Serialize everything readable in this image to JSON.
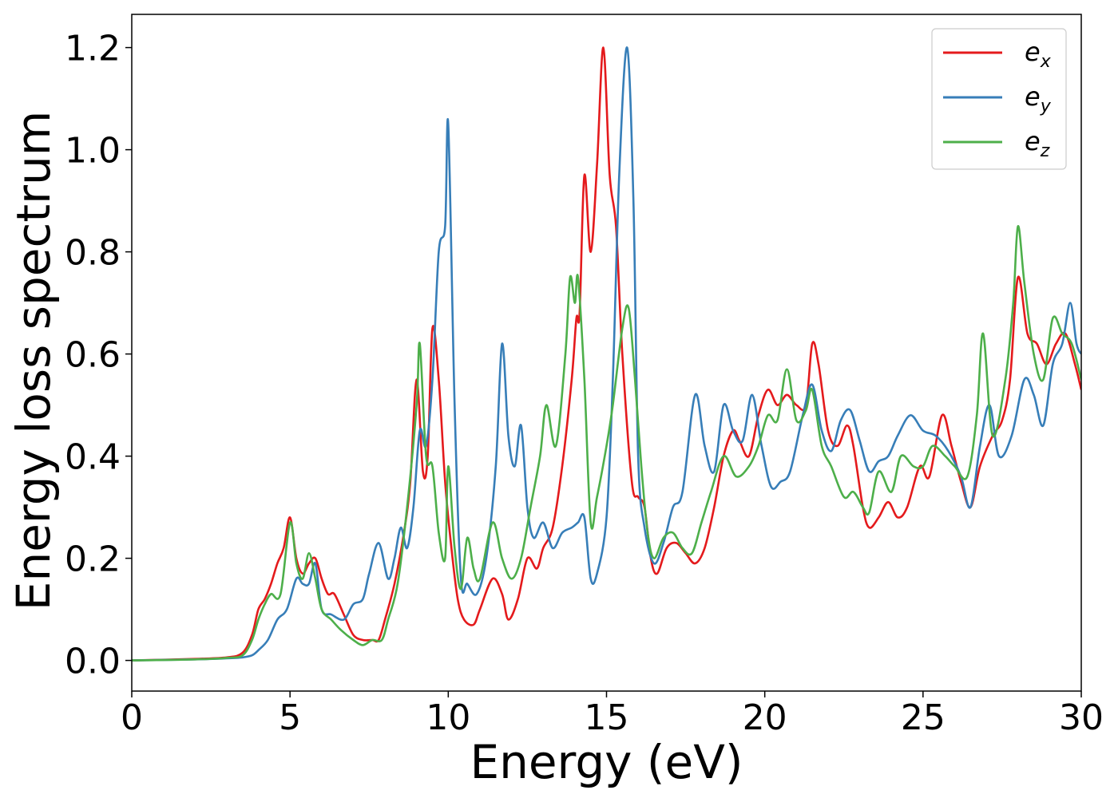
{
  "chart_data": {
    "type": "line",
    "xlabel": "Energy (eV)",
    "ylabel": "Energy loss spectrum",
    "xlim": [
      0,
      30
    ],
    "ylim": [
      -0.06,
      1.265
    ],
    "xticks": [
      0,
      5,
      10,
      15,
      20,
      25,
      30
    ],
    "xtick_labels": [
      "0",
      "5",
      "10",
      "15",
      "20",
      "25",
      "30"
    ],
    "yticks": [
      0.0,
      0.2,
      0.4,
      0.6,
      0.8,
      1.0,
      1.2
    ],
    "ytick_labels": [
      "0.0",
      "0.2",
      "0.4",
      "0.6",
      "0.8",
      "1.0",
      "1.2"
    ],
    "grid": false,
    "legend_position": "top-right",
    "series": [
      {
        "name": "e_x",
        "legend_base": "e",
        "legend_sub": "x",
        "color": "#e41a1c",
        "points": [
          [
            0,
            0
          ],
          [
            2,
            0.003
          ],
          [
            3,
            0.006
          ],
          [
            3.5,
            0.015
          ],
          [
            3.8,
            0.05
          ],
          [
            4.0,
            0.1
          ],
          [
            4.2,
            0.12
          ],
          [
            4.4,
            0.15
          ],
          [
            4.6,
            0.19
          ],
          [
            4.8,
            0.22
          ],
          [
            5.0,
            0.28
          ],
          [
            5.2,
            0.2
          ],
          [
            5.4,
            0.17
          ],
          [
            5.6,
            0.19
          ],
          [
            5.8,
            0.2
          ],
          [
            6.0,
            0.16
          ],
          [
            6.2,
            0.13
          ],
          [
            6.4,
            0.13
          ],
          [
            6.7,
            0.09
          ],
          [
            7.0,
            0.05
          ],
          [
            7.3,
            0.04
          ],
          [
            7.6,
            0.04
          ],
          [
            7.8,
            0.04
          ],
          [
            8.0,
            0.08
          ],
          [
            8.3,
            0.15
          ],
          [
            8.6,
            0.25
          ],
          [
            8.8,
            0.35
          ],
          [
            9.0,
            0.55
          ],
          [
            9.2,
            0.37
          ],
          [
            9.35,
            0.4
          ],
          [
            9.5,
            0.65
          ],
          [
            9.7,
            0.55
          ],
          [
            9.9,
            0.35
          ],
          [
            10.1,
            0.22
          ],
          [
            10.3,
            0.12
          ],
          [
            10.5,
            0.08
          ],
          [
            10.8,
            0.07
          ],
          [
            11.0,
            0.1
          ],
          [
            11.4,
            0.16
          ],
          [
            11.7,
            0.13
          ],
          [
            11.9,
            0.08
          ],
          [
            12.2,
            0.12
          ],
          [
            12.5,
            0.2
          ],
          [
            12.8,
            0.18
          ],
          [
            13.0,
            0.22
          ],
          [
            13.3,
            0.26
          ],
          [
            13.6,
            0.38
          ],
          [
            13.9,
            0.55
          ],
          [
            14.05,
            0.67
          ],
          [
            14.15,
            0.68
          ],
          [
            14.3,
            0.95
          ],
          [
            14.5,
            0.8
          ],
          [
            14.7,
            0.97
          ],
          [
            14.9,
            1.2
          ],
          [
            15.1,
            0.95
          ],
          [
            15.3,
            0.85
          ],
          [
            15.5,
            0.6
          ],
          [
            15.8,
            0.35
          ],
          [
            16.0,
            0.32
          ],
          [
            16.2,
            0.3
          ],
          [
            16.4,
            0.2
          ],
          [
            16.6,
            0.17
          ],
          [
            16.9,
            0.22
          ],
          [
            17.2,
            0.23
          ],
          [
            17.5,
            0.21
          ],
          [
            17.8,
            0.19
          ],
          [
            18.1,
            0.22
          ],
          [
            18.4,
            0.3
          ],
          [
            18.7,
            0.4
          ],
          [
            19.0,
            0.45
          ],
          [
            19.2,
            0.43
          ],
          [
            19.5,
            0.4
          ],
          [
            19.8,
            0.48
          ],
          [
            20.1,
            0.53
          ],
          [
            20.4,
            0.5
          ],
          [
            20.7,
            0.52
          ],
          [
            21.0,
            0.5
          ],
          [
            21.3,
            0.5
          ],
          [
            21.5,
            0.62
          ],
          [
            21.7,
            0.58
          ],
          [
            22.0,
            0.45
          ],
          [
            22.3,
            0.42
          ],
          [
            22.6,
            0.46
          ],
          [
            22.8,
            0.42
          ],
          [
            23.1,
            0.3
          ],
          [
            23.3,
            0.26
          ],
          [
            23.6,
            0.28
          ],
          [
            23.9,
            0.31
          ],
          [
            24.2,
            0.28
          ],
          [
            24.5,
            0.3
          ],
          [
            24.9,
            0.38
          ],
          [
            25.2,
            0.36
          ],
          [
            25.6,
            0.48
          ],
          [
            25.9,
            0.42
          ],
          [
            26.2,
            0.35
          ],
          [
            26.5,
            0.3
          ],
          [
            26.8,
            0.38
          ],
          [
            27.2,
            0.44
          ],
          [
            27.5,
            0.47
          ],
          [
            27.75,
            0.55
          ],
          [
            28.0,
            0.75
          ],
          [
            28.3,
            0.64
          ],
          [
            28.6,
            0.62
          ],
          [
            28.9,
            0.58
          ],
          [
            29.2,
            0.62
          ],
          [
            29.5,
            0.64
          ],
          [
            29.8,
            0.58
          ],
          [
            30.0,
            0.53
          ]
        ]
      },
      {
        "name": "e_y",
        "legend_base": "e",
        "legend_sub": "y",
        "color": "#377eb8",
        "points": [
          [
            0,
            0
          ],
          [
            2,
            0.002
          ],
          [
            3,
            0.004
          ],
          [
            3.5,
            0.006
          ],
          [
            3.8,
            0.01
          ],
          [
            4.0,
            0.02
          ],
          [
            4.3,
            0.04
          ],
          [
            4.6,
            0.08
          ],
          [
            4.9,
            0.1
          ],
          [
            5.2,
            0.16
          ],
          [
            5.4,
            0.15
          ],
          [
            5.6,
            0.15
          ],
          [
            5.8,
            0.19
          ],
          [
            6.0,
            0.1
          ],
          [
            6.3,
            0.09
          ],
          [
            6.7,
            0.08
          ],
          [
            7.0,
            0.11
          ],
          [
            7.3,
            0.12
          ],
          [
            7.5,
            0.17
          ],
          [
            7.8,
            0.23
          ],
          [
            8.1,
            0.16
          ],
          [
            8.3,
            0.2
          ],
          [
            8.5,
            0.26
          ],
          [
            8.7,
            0.22
          ],
          [
            8.9,
            0.3
          ],
          [
            9.1,
            0.45
          ],
          [
            9.3,
            0.42
          ],
          [
            9.5,
            0.55
          ],
          [
            9.7,
            0.8
          ],
          [
            9.9,
            0.85
          ],
          [
            10.0,
            1.05
          ],
          [
            10.2,
            0.5
          ],
          [
            10.4,
            0.16
          ],
          [
            10.6,
            0.15
          ],
          [
            10.9,
            0.13
          ],
          [
            11.2,
            0.2
          ],
          [
            11.5,
            0.38
          ],
          [
            11.7,
            0.62
          ],
          [
            11.9,
            0.44
          ],
          [
            12.1,
            0.38
          ],
          [
            12.3,
            0.46
          ],
          [
            12.5,
            0.3
          ],
          [
            12.7,
            0.24
          ],
          [
            13.0,
            0.27
          ],
          [
            13.3,
            0.22
          ],
          [
            13.6,
            0.25
          ],
          [
            13.9,
            0.26
          ],
          [
            14.1,
            0.27
          ],
          [
            14.3,
            0.28
          ],
          [
            14.5,
            0.16
          ],
          [
            14.7,
            0.17
          ],
          [
            15.0,
            0.28
          ],
          [
            15.2,
            0.55
          ],
          [
            15.4,
            0.95
          ],
          [
            15.65,
            1.2
          ],
          [
            15.85,
            0.9
          ],
          [
            16.0,
            0.4
          ],
          [
            16.2,
            0.26
          ],
          [
            16.5,
            0.19
          ],
          [
            16.8,
            0.23
          ],
          [
            17.1,
            0.3
          ],
          [
            17.4,
            0.33
          ],
          [
            17.8,
            0.52
          ],
          [
            18.1,
            0.42
          ],
          [
            18.4,
            0.37
          ],
          [
            18.7,
            0.5
          ],
          [
            19.0,
            0.45
          ],
          [
            19.3,
            0.43
          ],
          [
            19.6,
            0.52
          ],
          [
            19.9,
            0.42
          ],
          [
            20.2,
            0.34
          ],
          [
            20.5,
            0.35
          ],
          [
            20.8,
            0.37
          ],
          [
            21.2,
            0.48
          ],
          [
            21.5,
            0.54
          ],
          [
            21.8,
            0.45
          ],
          [
            22.1,
            0.41
          ],
          [
            22.4,
            0.47
          ],
          [
            22.7,
            0.49
          ],
          [
            23.0,
            0.43
          ],
          [
            23.3,
            0.37
          ],
          [
            23.6,
            0.39
          ],
          [
            23.9,
            0.4
          ],
          [
            24.2,
            0.44
          ],
          [
            24.6,
            0.48
          ],
          [
            25.0,
            0.45
          ],
          [
            25.4,
            0.44
          ],
          [
            25.8,
            0.41
          ],
          [
            26.2,
            0.36
          ],
          [
            26.5,
            0.3
          ],
          [
            26.8,
            0.42
          ],
          [
            27.1,
            0.5
          ],
          [
            27.4,
            0.4
          ],
          [
            27.8,
            0.44
          ],
          [
            28.2,
            0.55
          ],
          [
            28.5,
            0.52
          ],
          [
            28.8,
            0.46
          ],
          [
            29.1,
            0.58
          ],
          [
            29.4,
            0.62
          ],
          [
            29.65,
            0.7
          ],
          [
            29.85,
            0.62
          ],
          [
            30.0,
            0.6
          ]
        ]
      },
      {
        "name": "e_z",
        "legend_base": "e",
        "legend_sub": "z",
        "color": "#4daf4a",
        "points": [
          [
            0,
            0
          ],
          [
            2,
            0.002
          ],
          [
            3,
            0.005
          ],
          [
            3.5,
            0.01
          ],
          [
            3.8,
            0.04
          ],
          [
            4.0,
            0.08
          ],
          [
            4.2,
            0.11
          ],
          [
            4.4,
            0.13
          ],
          [
            4.7,
            0.13
          ],
          [
            5.0,
            0.27
          ],
          [
            5.2,
            0.19
          ],
          [
            5.4,
            0.16
          ],
          [
            5.6,
            0.21
          ],
          [
            5.8,
            0.16
          ],
          [
            6.0,
            0.1
          ],
          [
            6.3,
            0.08
          ],
          [
            6.6,
            0.06
          ],
          [
            7.0,
            0.04
          ],
          [
            7.3,
            0.03
          ],
          [
            7.6,
            0.04
          ],
          [
            7.9,
            0.04
          ],
          [
            8.1,
            0.08
          ],
          [
            8.4,
            0.15
          ],
          [
            8.7,
            0.3
          ],
          [
            9.0,
            0.5
          ],
          [
            9.1,
            0.62
          ],
          [
            9.3,
            0.4
          ],
          [
            9.5,
            0.38
          ],
          [
            9.7,
            0.25
          ],
          [
            9.9,
            0.2
          ],
          [
            10.0,
            0.38
          ],
          [
            10.2,
            0.22
          ],
          [
            10.4,
            0.14
          ],
          [
            10.6,
            0.24
          ],
          [
            10.8,
            0.18
          ],
          [
            11.0,
            0.16
          ],
          [
            11.4,
            0.27
          ],
          [
            11.7,
            0.2
          ],
          [
            12.0,
            0.16
          ],
          [
            12.3,
            0.2
          ],
          [
            12.6,
            0.3
          ],
          [
            12.9,
            0.4
          ],
          [
            13.1,
            0.5
          ],
          [
            13.4,
            0.42
          ],
          [
            13.7,
            0.6
          ],
          [
            13.85,
            0.75
          ],
          [
            14.0,
            0.7
          ],
          [
            14.1,
            0.75
          ],
          [
            14.3,
            0.55
          ],
          [
            14.5,
            0.27
          ],
          [
            14.7,
            0.32
          ],
          [
            15.0,
            0.42
          ],
          [
            15.2,
            0.5
          ],
          [
            15.5,
            0.65
          ],
          [
            15.7,
            0.69
          ],
          [
            15.9,
            0.55
          ],
          [
            16.1,
            0.38
          ],
          [
            16.3,
            0.25
          ],
          [
            16.5,
            0.2
          ],
          [
            16.8,
            0.24
          ],
          [
            17.1,
            0.25
          ],
          [
            17.4,
            0.22
          ],
          [
            17.7,
            0.21
          ],
          [
            18.0,
            0.27
          ],
          [
            18.3,
            0.33
          ],
          [
            18.7,
            0.4
          ],
          [
            19.1,
            0.36
          ],
          [
            19.5,
            0.38
          ],
          [
            19.8,
            0.42
          ],
          [
            20.1,
            0.48
          ],
          [
            20.4,
            0.47
          ],
          [
            20.7,
            0.57
          ],
          [
            21.0,
            0.47
          ],
          [
            21.3,
            0.49
          ],
          [
            21.5,
            0.53
          ],
          [
            21.8,
            0.42
          ],
          [
            22.1,
            0.38
          ],
          [
            22.5,
            0.32
          ],
          [
            22.8,
            0.33
          ],
          [
            23.1,
            0.3
          ],
          [
            23.3,
            0.29
          ],
          [
            23.6,
            0.37
          ],
          [
            24.0,
            0.33
          ],
          [
            24.3,
            0.4
          ],
          [
            24.7,
            0.38
          ],
          [
            25.0,
            0.38
          ],
          [
            25.3,
            0.42
          ],
          [
            25.7,
            0.4
          ],
          [
            26.0,
            0.38
          ],
          [
            26.4,
            0.36
          ],
          [
            26.7,
            0.48
          ],
          [
            26.9,
            0.64
          ],
          [
            27.2,
            0.44
          ],
          [
            27.6,
            0.55
          ],
          [
            27.85,
            0.7
          ],
          [
            28.0,
            0.85
          ],
          [
            28.2,
            0.74
          ],
          [
            28.5,
            0.6
          ],
          [
            28.8,
            0.55
          ],
          [
            29.1,
            0.67
          ],
          [
            29.4,
            0.64
          ],
          [
            29.7,
            0.62
          ],
          [
            30.0,
            0.55
          ]
        ]
      }
    ]
  }
}
